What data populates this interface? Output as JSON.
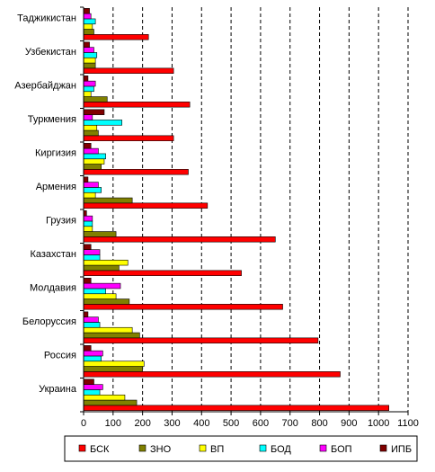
{
  "chart_data": {
    "type": "bar",
    "orientation": "horizontal",
    "title": "",
    "xlabel": "",
    "ylabel": "",
    "xlim": [
      0,
      1100
    ],
    "x_ticks": [
      0,
      100,
      200,
      300,
      400,
      500,
      600,
      700,
      800,
      900,
      1000,
      1100
    ],
    "grid": "vertical dashed",
    "legend_position": "bottom",
    "categories": [
      "Таджикистан",
      "Узбекистан",
      "Азербайджан",
      "Туркмения",
      "Киргизия",
      "Армения",
      "Грузия",
      "Казахстан",
      "Молдавия",
      "Белоруссия",
      "Россия",
      "Украина"
    ],
    "series": [
      {
        "name": "БСК",
        "color": "#ff0000",
        "values": [
          220,
          305,
          360,
          305,
          355,
          420,
          650,
          535,
          675,
          795,
          870,
          1035
        ]
      },
      {
        "name": "ЗНО",
        "color": "#808000",
        "values": [
          35,
          40,
          80,
          50,
          60,
          165,
          110,
          120,
          155,
          190,
          200,
          180
        ]
      },
      {
        "name": "ВП",
        "color": "#ffff00",
        "values": [
          30,
          40,
          25,
          45,
          70,
          40,
          30,
          150,
          110,
          165,
          205,
          140
        ]
      },
      {
        "name": "БОД",
        "color": "#00ffff",
        "values": [
          40,
          45,
          35,
          130,
          75,
          60,
          30,
          55,
          75,
          55,
          60,
          55
        ]
      },
      {
        "name": "БОП",
        "color": "#ff00ff",
        "values": [
          25,
          35,
          40,
          30,
          50,
          50,
          30,
          55,
          125,
          50,
          65,
          65
        ]
      },
      {
        "name": "ИПБ",
        "color": "#800000",
        "values": [
          20,
          20,
          15,
          70,
          25,
          15,
          10,
          25,
          25,
          15,
          25,
          35
        ]
      }
    ]
  }
}
